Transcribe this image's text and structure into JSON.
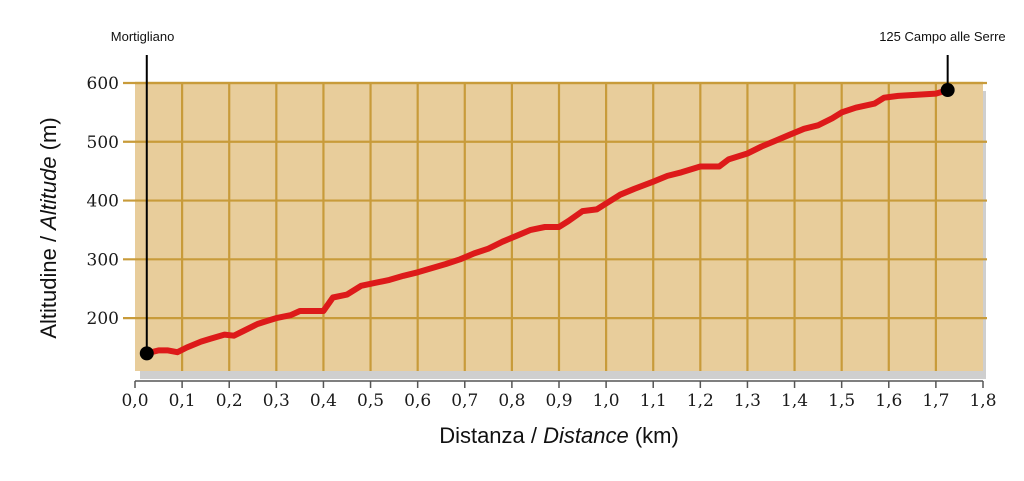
{
  "chart_data": {
    "type": "line",
    "xlabel": {
      "plain": "Distanza / ",
      "italic": "Distance",
      "unit": " (km)"
    },
    "ylabel": {
      "plain": "Altitudine / ",
      "italic": "Altitude",
      "unit": " (m)"
    },
    "xlim": [
      0,
      1.8
    ],
    "ylim": [
      110,
      600
    ],
    "x_ticks": [
      0,
      0.1,
      0.2,
      0.3,
      0.4,
      0.5,
      0.6,
      0.7,
      0.8,
      0.9,
      1.0,
      1.1,
      1.2,
      1.3,
      1.4,
      1.5,
      1.6,
      1.7,
      1.8
    ],
    "x_tick_labels": [
      "0,0",
      "0,1",
      "0,2",
      "0,3",
      "0,4",
      "0,5",
      "0,6",
      "0,7",
      "0,8",
      "0,9",
      "1,0",
      "1,1",
      "1,2",
      "1,3",
      "1,4",
      "1,5",
      "1,6",
      "1,7",
      "1,8"
    ],
    "y_ticks": [
      200,
      300,
      400,
      500,
      600
    ],
    "y_tick_labels": [
      "200",
      "300",
      "400",
      "500",
      "600"
    ],
    "grid": true,
    "colors": {
      "plot_bg": "#e8cd9b",
      "grid": "#c89b3a",
      "line": "#dd1a1a",
      "marker": "#000000"
    },
    "series": [
      {
        "x": [
          0.025,
          0.05,
          0.07,
          0.09,
          0.11,
          0.14,
          0.16,
          0.19,
          0.21,
          0.23,
          0.26,
          0.28,
          0.3,
          0.33,
          0.35,
          0.4,
          0.42,
          0.45,
          0.48,
          0.51,
          0.54,
          0.57,
          0.6,
          0.63,
          0.66,
          0.69,
          0.72,
          0.75,
          0.78,
          0.81,
          0.84,
          0.87,
          0.9,
          0.92,
          0.95,
          0.98,
          1.0,
          1.03,
          1.06,
          1.1,
          1.13,
          1.16,
          1.2,
          1.24,
          1.26,
          1.3,
          1.33,
          1.36,
          1.39,
          1.42,
          1.45,
          1.48,
          1.5,
          1.53,
          1.57,
          1.59,
          1.62,
          1.66,
          1.7,
          1.725
        ],
        "y": [
          140,
          145,
          145,
          142,
          150,
          160,
          165,
          172,
          170,
          178,
          190,
          195,
          200,
          205,
          212,
          212,
          235,
          240,
          255,
          260,
          265,
          272,
          278,
          285,
          292,
          300,
          310,
          318,
          330,
          340,
          350,
          355,
          355,
          365,
          382,
          385,
          395,
          410,
          420,
          432,
          442,
          448,
          458,
          458,
          470,
          480,
          492,
          502,
          512,
          522,
          528,
          540,
          550,
          558,
          565,
          575,
          578,
          580,
          582,
          588
        ]
      }
    ],
    "annotations": [
      {
        "label": "Mortigliano",
        "x": 0.025,
        "y": 140
      },
      {
        "label": "125 Campo alle Serre",
        "x": 1.725,
        "y": 588
      }
    ]
  }
}
